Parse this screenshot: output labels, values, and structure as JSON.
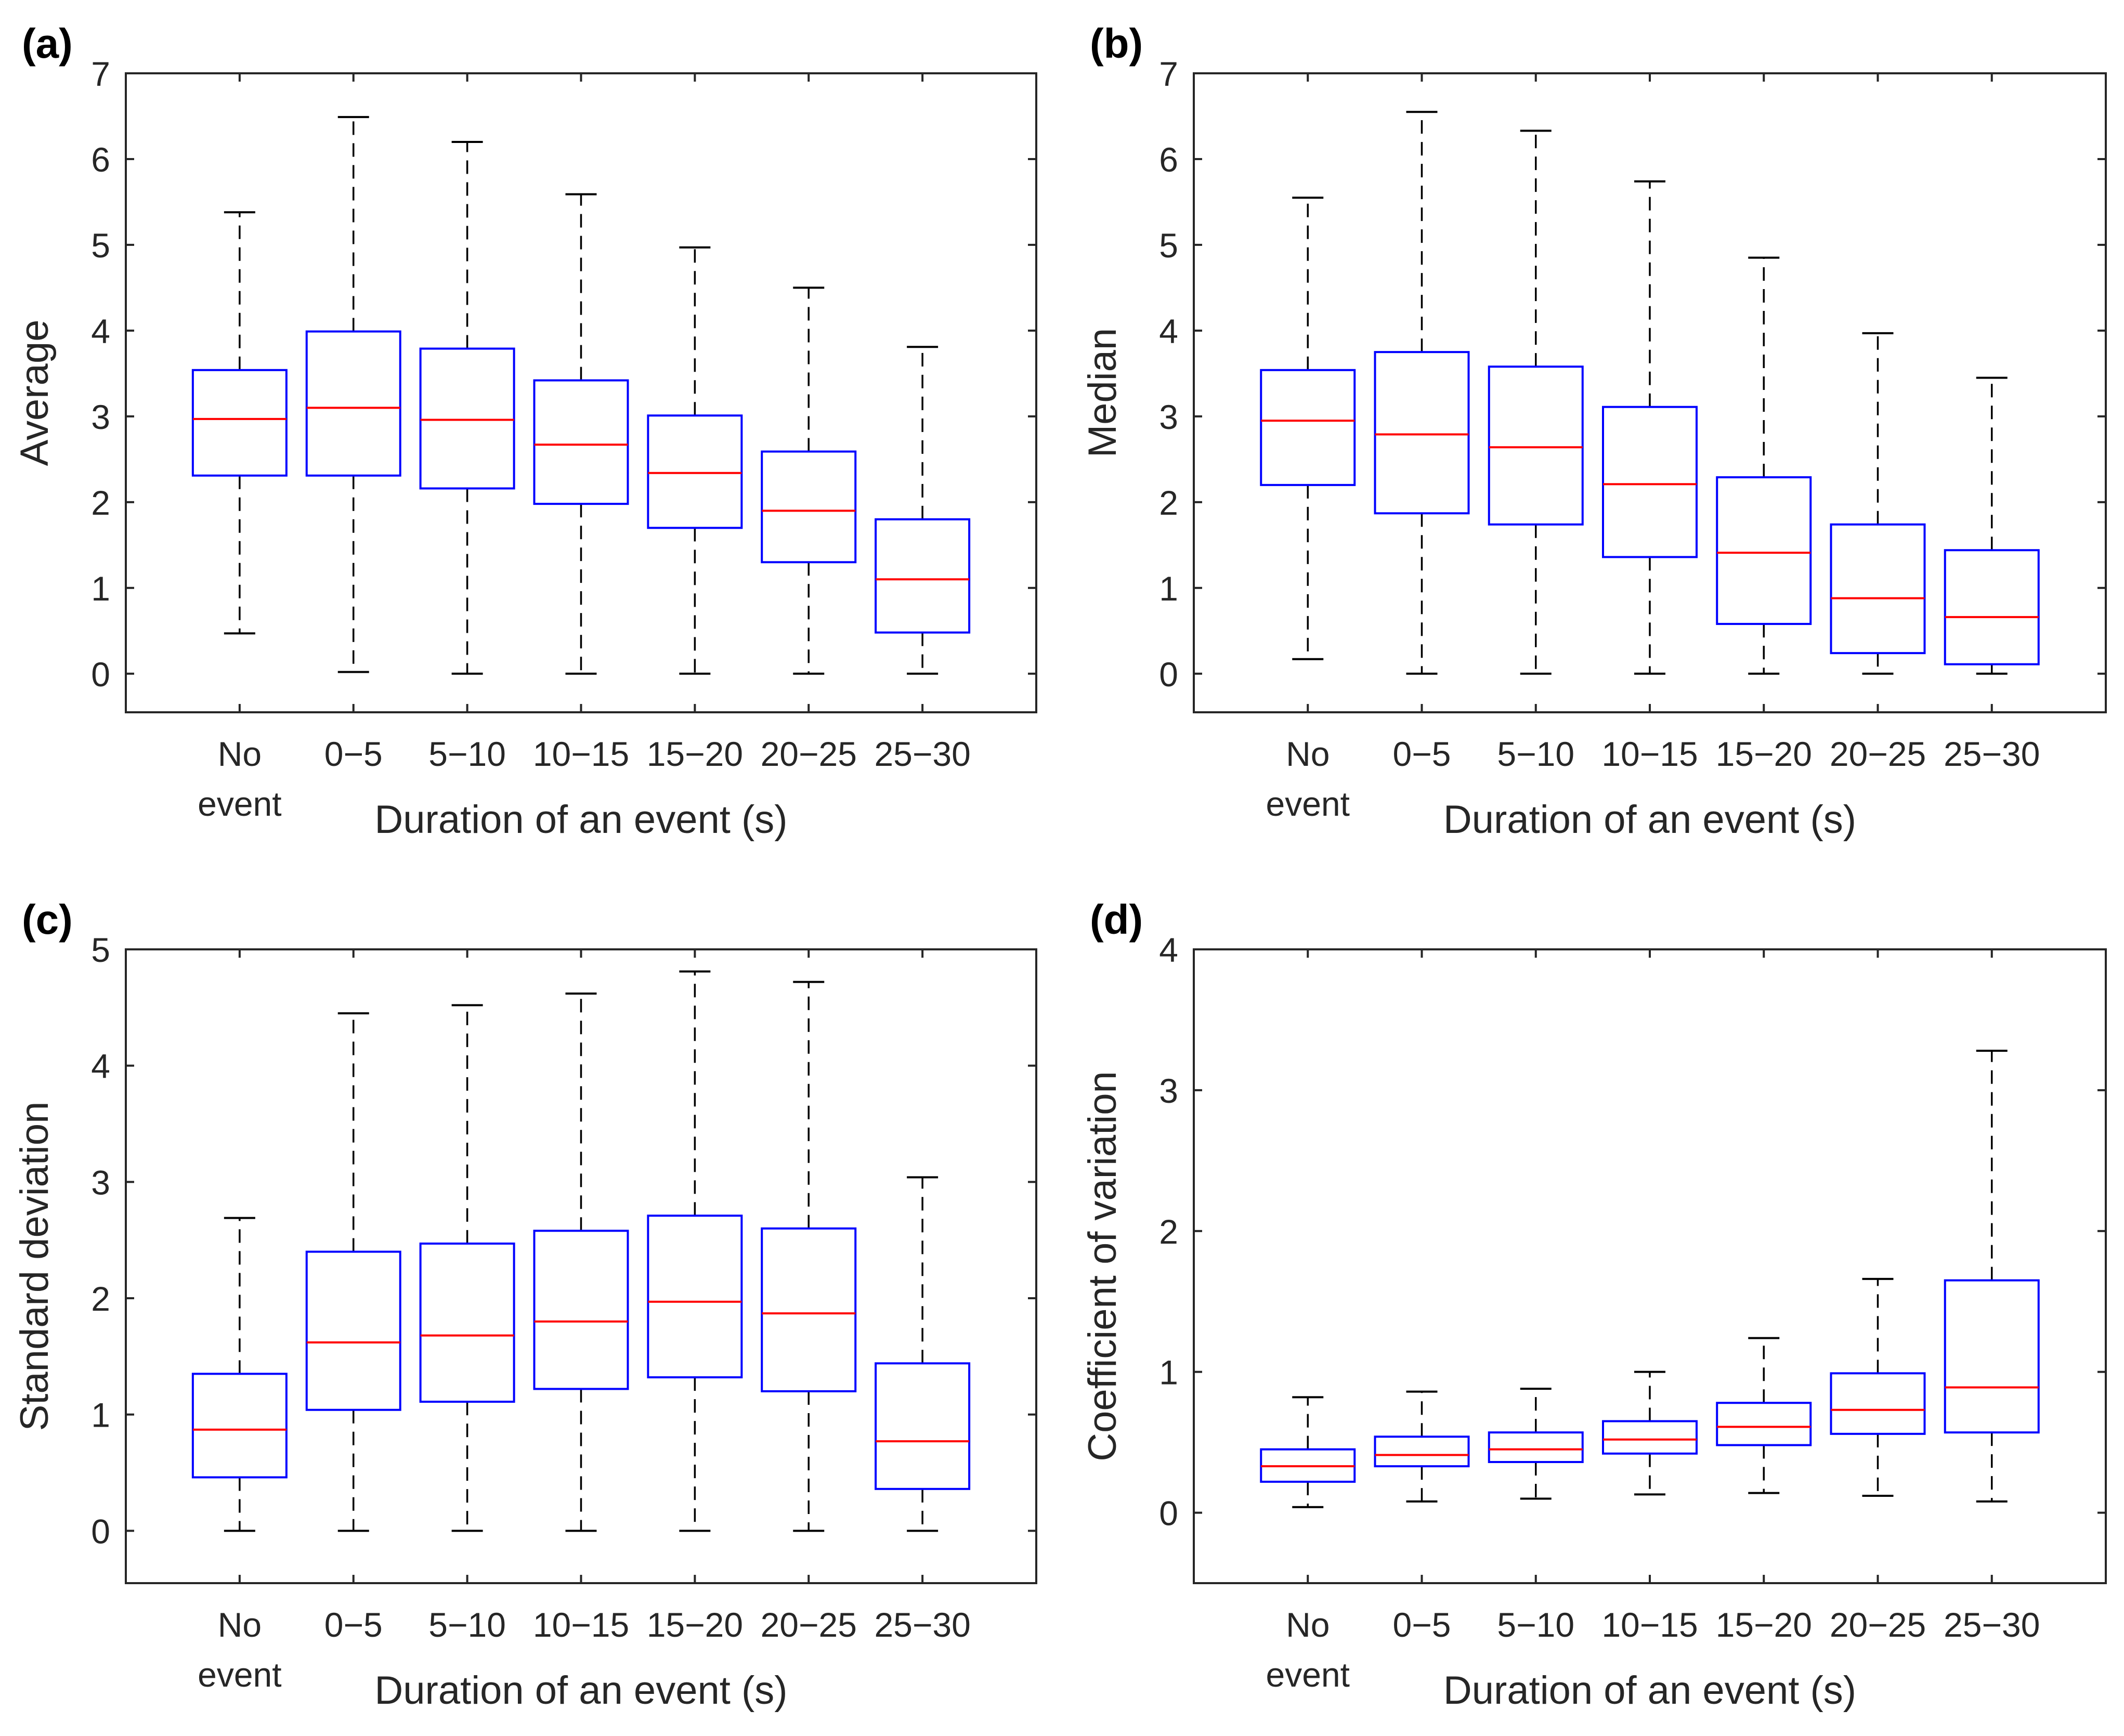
{
  "colors": {
    "axes": "#262626",
    "box": "#0000FF",
    "median": "#FF0000",
    "whisker": "#000000"
  },
  "chart_data": [
    {
      "type": "boxplot",
      "panel": "(a)",
      "title": "",
      "xlabel": "Duration of an event (s)",
      "ylabel": "Average",
      "ylim": [
        -0.45,
        7
      ],
      "yticks": [
        "0",
        "1",
        "2",
        "3",
        "4",
        "5",
        "6",
        "7"
      ],
      "categories": [
        [
          "No",
          "event"
        ],
        [
          "0−5"
        ],
        [
          "5−10"
        ],
        [
          "10−15"
        ],
        [
          "15−20"
        ],
        [
          "20−25"
        ],
        [
          "25−30"
        ]
      ],
      "boxes": [
        {
          "whisker_low": 0.47,
          "q1": 2.31,
          "median": 2.97,
          "q3": 3.54,
          "whisker_high": 5.38
        },
        {
          "whisker_low": 0.02,
          "q1": 2.31,
          "median": 3.1,
          "q3": 3.99,
          "whisker_high": 6.49
        },
        {
          "whisker_low": 0.0,
          "q1": 2.16,
          "median": 2.96,
          "q3": 3.79,
          "whisker_high": 6.2
        },
        {
          "whisker_low": 0.0,
          "q1": 1.98,
          "median": 2.67,
          "q3": 3.42,
          "whisker_high": 5.59
        },
        {
          "whisker_low": 0.0,
          "q1": 1.7,
          "median": 2.34,
          "q3": 3.01,
          "whisker_high": 4.97
        },
        {
          "whisker_low": 0.0,
          "q1": 1.3,
          "median": 1.9,
          "q3": 2.59,
          "whisker_high": 4.5
        },
        {
          "whisker_low": 0.0,
          "q1": 0.48,
          "median": 1.1,
          "q3": 1.8,
          "whisker_high": 3.81
        }
      ]
    },
    {
      "type": "boxplot",
      "panel": "(b)",
      "title": "",
      "xlabel": "Duration of an event (s)",
      "ylabel": "Median",
      "ylim": [
        -0.45,
        7
      ],
      "yticks": [
        "0",
        "1",
        "2",
        "3",
        "4",
        "5",
        "6",
        "7"
      ],
      "categories": [
        [
          "No",
          "event"
        ],
        [
          "0−5"
        ],
        [
          "5−10"
        ],
        [
          "10−15"
        ],
        [
          "15−20"
        ],
        [
          "20−25"
        ],
        [
          "25−30"
        ]
      ],
      "boxes": [
        {
          "whisker_low": 0.17,
          "q1": 2.2,
          "median": 2.95,
          "q3": 3.54,
          "whisker_high": 5.55
        },
        {
          "whisker_low": 0.0,
          "q1": 1.87,
          "median": 2.79,
          "q3": 3.75,
          "whisker_high": 6.55
        },
        {
          "whisker_low": 0.0,
          "q1": 1.74,
          "median": 2.64,
          "q3": 3.58,
          "whisker_high": 6.33
        },
        {
          "whisker_low": 0.0,
          "q1": 1.36,
          "median": 2.21,
          "q3": 3.11,
          "whisker_high": 5.74
        },
        {
          "whisker_low": 0.0,
          "q1": 0.58,
          "median": 1.41,
          "q3": 2.29,
          "whisker_high": 4.85
        },
        {
          "whisker_low": 0.0,
          "q1": 0.24,
          "median": 0.88,
          "q3": 1.74,
          "whisker_high": 3.97
        },
        {
          "whisker_low": 0.0,
          "q1": 0.11,
          "median": 0.66,
          "q3": 1.44,
          "whisker_high": 3.45
        }
      ]
    },
    {
      "type": "boxplot",
      "panel": "(c)",
      "title": "",
      "xlabel": "Duration of an event (s)",
      "ylabel": "Standard deviation",
      "ylim": [
        -0.45,
        5
      ],
      "yticks": [
        "0",
        "1",
        "2",
        "3",
        "4",
        "5"
      ],
      "categories": [
        [
          "No",
          "event"
        ],
        [
          "0−5"
        ],
        [
          "5−10"
        ],
        [
          "10−15"
        ],
        [
          "15−20"
        ],
        [
          "20−25"
        ],
        [
          "25−30"
        ]
      ],
      "boxes": [
        {
          "whisker_low": 0.0,
          "q1": 0.46,
          "median": 0.87,
          "q3": 1.35,
          "whisker_high": 2.69
        },
        {
          "whisker_low": 0.0,
          "q1": 1.04,
          "median": 1.62,
          "q3": 2.4,
          "whisker_high": 4.45
        },
        {
          "whisker_low": 0.0,
          "q1": 1.11,
          "median": 1.68,
          "q3": 2.47,
          "whisker_high": 4.52
        },
        {
          "whisker_low": 0.0,
          "q1": 1.22,
          "median": 1.8,
          "q3": 2.58,
          "whisker_high": 4.62
        },
        {
          "whisker_low": 0.0,
          "q1": 1.32,
          "median": 1.97,
          "q3": 2.71,
          "whisker_high": 4.81
        },
        {
          "whisker_low": 0.0,
          "q1": 1.2,
          "median": 1.87,
          "q3": 2.6,
          "whisker_high": 4.72
        },
        {
          "whisker_low": 0.0,
          "q1": 0.36,
          "median": 0.77,
          "q3": 1.44,
          "whisker_high": 3.04
        }
      ]
    },
    {
      "type": "boxplot",
      "panel": "(d)",
      "title": "",
      "xlabel": "Duration of an event (s)",
      "ylabel": "Coefficient of variation",
      "ylim": [
        -0.5,
        4
      ],
      "yticks": [
        "0",
        "1",
        "2",
        "3",
        "4"
      ],
      "categories": [
        [
          "No",
          "event"
        ],
        [
          "0−5"
        ],
        [
          "5−10"
        ],
        [
          "10−15"
        ],
        [
          "15−20"
        ],
        [
          "20−25"
        ],
        [
          "25−30"
        ]
      ],
      "boxes": [
        {
          "whisker_low": 0.04,
          "q1": 0.22,
          "median": 0.33,
          "q3": 0.45,
          "whisker_high": 0.82
        },
        {
          "whisker_low": 0.08,
          "q1": 0.33,
          "median": 0.41,
          "q3": 0.54,
          "whisker_high": 0.86
        },
        {
          "whisker_low": 0.1,
          "q1": 0.36,
          "median": 0.45,
          "q3": 0.57,
          "whisker_high": 0.88
        },
        {
          "whisker_low": 0.13,
          "q1": 0.42,
          "median": 0.52,
          "q3": 0.65,
          "whisker_high": 1.0
        },
        {
          "whisker_low": 0.14,
          "q1": 0.48,
          "median": 0.61,
          "q3": 0.78,
          "whisker_high": 1.24
        },
        {
          "whisker_low": 0.12,
          "q1": 0.56,
          "median": 0.73,
          "q3": 0.99,
          "whisker_high": 1.66
        },
        {
          "whisker_low": 0.08,
          "q1": 0.57,
          "median": 0.89,
          "q3": 1.65,
          "whisker_high": 3.28
        }
      ]
    }
  ]
}
